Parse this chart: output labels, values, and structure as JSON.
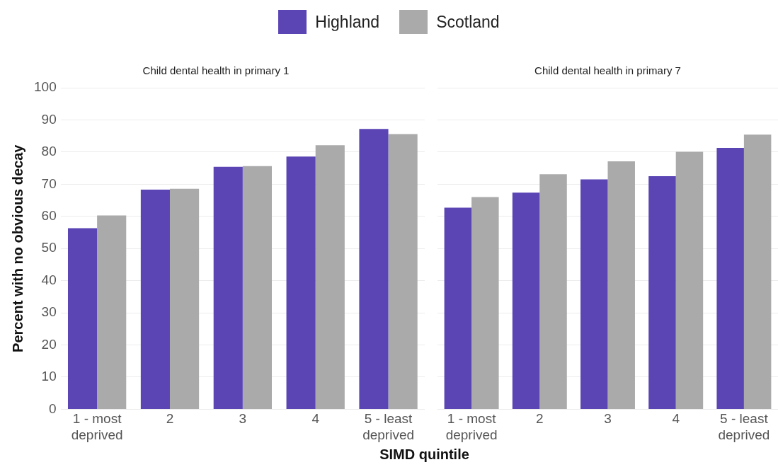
{
  "chart_data": [
    {
      "type": "bar",
      "title": "Child dental health in primary 1",
      "xlabel": "SIMD quintile",
      "ylabel": "Percent with no obvious decay",
      "categories": [
        "1 - most deprived",
        "2",
        "3",
        "4",
        "5 - least deprived"
      ],
      "series": [
        {
          "name": "Highland",
          "color": "#5b45b5",
          "values": [
            56.3,
            68.3,
            75.4,
            78.6,
            87.2
          ]
        },
        {
          "name": "Scotland",
          "color": "#aaaaaa",
          "values": [
            60.3,
            68.6,
            75.6,
            82.1,
            85.6
          ]
        }
      ],
      "ylim": [
        0,
        100
      ],
      "yticks": [
        0,
        10,
        20,
        30,
        40,
        50,
        60,
        70,
        80,
        90,
        100
      ],
      "grid": "y",
      "legend": "top"
    },
    {
      "type": "bar",
      "title": "Child dental health in primary 7",
      "categories": [
        "1 - most deprived",
        "2",
        "3",
        "4",
        "5 - least deprived"
      ],
      "series": [
        {
          "color": "#5b45b5",
          "values": [
            62.7,
            67.4,
            71.5,
            72.5,
            81.3
          ]
        },
        {
          "color": "#aaaaaa",
          "values": [
            66.0,
            73.1,
            77.1,
            80.1,
            85.4
          ]
        }
      ],
      "ylim": [
        0,
        100
      ],
      "yticks": [
        0,
        10,
        20,
        30,
        40,
        50,
        60,
        70,
        80,
        90,
        100
      ],
      "grid": "y",
      "tick_labels": "x"
    }
  ]
}
